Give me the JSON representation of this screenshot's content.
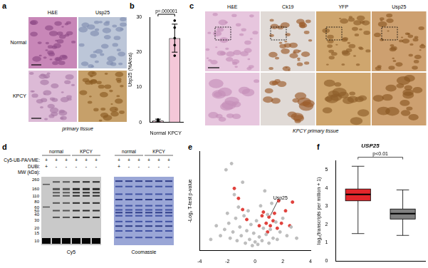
{
  "figure": {
    "a": {
      "panel": "a",
      "columns": [
        "H&E",
        "Usp25"
      ],
      "rows": [
        "Normal",
        "KPCY"
      ],
      "caption": "primary tissue"
    },
    "c": {
      "panel": "c",
      "columns": [
        "H&E",
        "Ck19",
        "YFP",
        "Usp25"
      ],
      "caption": "KPCY primary tissue"
    },
    "d": {
      "panel": "d",
      "groups": [
        {
          "label": "normal",
          "lanes": 3
        },
        {
          "label": "KPCY",
          "lanes": 3
        }
      ],
      "rows": [
        {
          "label": "Cy5-UB-PA/VME:",
          "marks": [
            "+",
            "+",
            "+",
            "+",
            "+",
            "+"
          ]
        },
        {
          "label": "DUBi:",
          "marks": [
            "+",
            "-",
            "-",
            "-",
            "-",
            "-"
          ]
        }
      ],
      "mw_label": "MW (kDa):",
      "mw": [
        260,
        160,
        110,
        80,
        60,
        50,
        40,
        30,
        20,
        15,
        10
      ],
      "gels": [
        "Cy5",
        "Coomassie"
      ]
    }
  },
  "chart_data": [
    {
      "panel": "b",
      "type": "bar",
      "categories": [
        "Normal",
        "KPCY"
      ],
      "values": [
        0.5,
        24
      ],
      "errors": [
        0.4,
        4
      ],
      "points": [
        [
          0.2,
          0.4,
          0.6,
          0.8,
          0.5
        ],
        [
          19,
          22,
          24,
          27,
          29
        ]
      ],
      "color": "#f4c7d8",
      "ylim": [
        0,
        30
      ],
      "yticks": [
        0,
        10,
        20,
        30
      ],
      "y_label": "Usp25 (%Area)",
      "annotation": "p=.000001",
      "grid": false
    },
    {
      "panel": "e",
      "type": "scatter",
      "y_label": "-Log₂ T-test p-value",
      "xlim": [
        -4,
        4
      ],
      "xticks": [
        -4,
        -2,
        0,
        2,
        4
      ],
      "ylim": [
        0,
        8
      ],
      "tick_labels": "x",
      "grid": false,
      "series": [
        {
          "color": "#bdbdbd",
          "x": [
            -2.8,
            -2.5,
            -2.2,
            -2.0,
            -1.9,
            -1.8,
            -1.6,
            -1.5,
            -1.4,
            -1.3,
            -1.2,
            -1.1,
            -1.0,
            -0.9,
            -0.8,
            -0.7,
            -0.6,
            -0.5,
            -0.4,
            -0.3,
            -0.2,
            -0.1,
            0,
            0.1,
            0.2,
            0.3,
            0.4,
            0.5,
            0.6,
            0.7,
            0.8,
            0.9,
            1.0,
            1.1,
            1.2,
            1.3,
            1.5,
            1.6,
            1.8,
            2.0,
            2.3,
            2.6,
            -3.2,
            3.0,
            -2.1,
            -1.7
          ],
          "values": [
            2.0,
            1.2,
            1.7,
            3.0,
            2.2,
            1.0,
            1.5,
            4.5,
            2.6,
            0.8,
            3.5,
            1.9,
            1.2,
            5.5,
            2.8,
            0.6,
            1.6,
            3.2,
            0.9,
            2.1,
            0.4,
            1.4,
            0.7,
            2.4,
            0.5,
            1.1,
            3.6,
            0.8,
            1.8,
            4.8,
            1.3,
            2.9,
            0.6,
            1.7,
            3.8,
            1.0,
            2.3,
            0.9,
            1.5,
            2.6,
            1.2,
            1.9,
            0.9,
            1.0,
            6.5,
            7.0
          ]
        },
        {
          "color": "#e0413c",
          "x": [
            -1.5,
            -1.2,
            -0.9,
            -0.6,
            0.3,
            0.5,
            0.6,
            0.8,
            0.9,
            1.0,
            1.1,
            1.3,
            1.4,
            1.6,
            1.9,
            2.2,
            2.5,
            2.7,
            1.7
          ],
          "values": [
            5.0,
            4.2,
            3.3,
            2.5,
            2.0,
            2.8,
            3.1,
            2.2,
            1.5,
            2.7,
            2.0,
            2.4,
            3.0,
            1.8,
            2.2,
            3.2,
            2.0,
            3.9,
            4.0
          ]
        }
      ],
      "annotation": {
        "text": "Usp25",
        "x": 1.0,
        "y": 2.7
      }
    },
    {
      "panel": "f",
      "type": "box",
      "title": "USP25",
      "y_label": "log₂(transcripts per million + 1)",
      "categories": [
        null,
        null
      ],
      "series": [
        {
          "color": "#e3262b",
          "min": 1.5,
          "q1": 3.3,
          "median": 3.65,
          "q3": 3.95,
          "max": 5.2
        },
        {
          "color": "#808080",
          "min": 1.4,
          "q1": 2.3,
          "median": 2.6,
          "q3": 2.85,
          "max": 3.9
        }
      ],
      "ylim": [
        0,
        5.5
      ],
      "yticks": [
        0,
        1,
        2,
        3,
        4,
        5
      ],
      "annotation": "p<0.01",
      "tick_labels": "y",
      "grid": false
    }
  ]
}
